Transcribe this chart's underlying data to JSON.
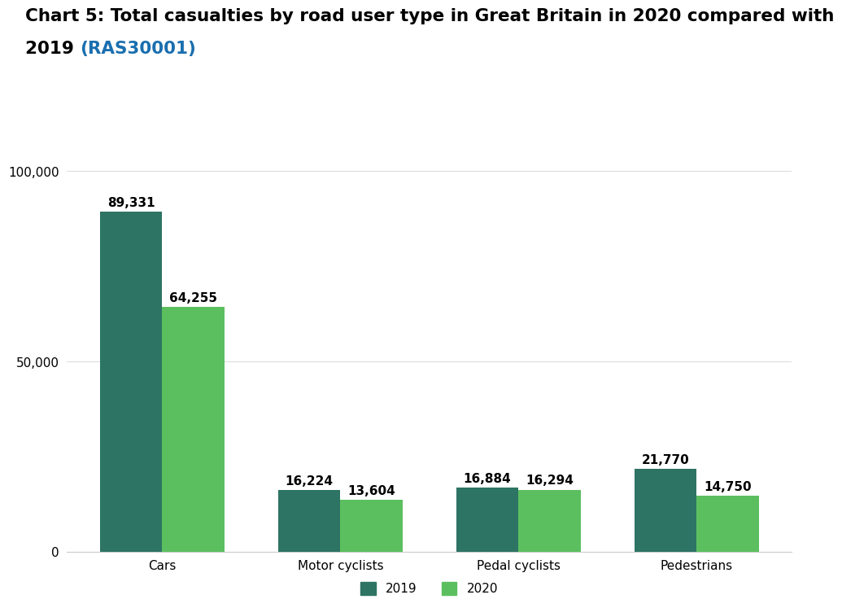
{
  "title_line1": "Chart 5: Total casualties by road user type in Great Britain in 2020 compared with",
  "title_line2_black": "2019 ",
  "title_line2_link": "(RAS30001)",
  "title_fontsize": 15.5,
  "categories": [
    "Cars",
    "Motor cyclists",
    "Pedal cyclists",
    "Pedestrians"
  ],
  "values_2019": [
    89331,
    16224,
    16884,
    21770
  ],
  "values_2020": [
    64255,
    13604,
    16294,
    14750
  ],
  "labels_2019": [
    "89,331",
    "16,224",
    "16,884",
    "21,770"
  ],
  "labels_2020": [
    "64,255",
    "13,604",
    "16,294",
    "14,750"
  ],
  "color_2019": "#2d7464",
  "color_2020": "#5cbf5f",
  "ylim": [
    0,
    110000
  ],
  "yticks": [
    0,
    50000,
    100000
  ],
  "ytick_labels": [
    "0",
    "50,000",
    "100,000"
  ],
  "bar_width": 0.35,
  "background_color": "#ffffff",
  "legend_label_2019": "2019",
  "legend_label_2020": "2020",
  "annotation_fontsize": 11,
  "axis_label_fontsize": 11,
  "link_color": "#1a6faf",
  "title_color": "#000000"
}
